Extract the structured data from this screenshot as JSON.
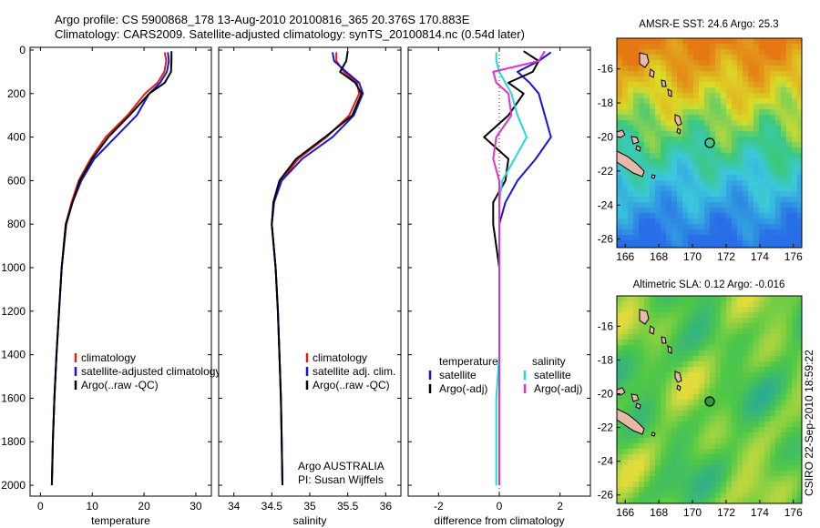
{
  "header": {
    "line1": "Argo profile: CS 5900868_178 13-Aug-2010 20100816_365 20.376S 170.883E",
    "line2": "Climatology: CARS2009. Satellite-adjusted climatology: synTS_20100814.nc (0.54d later)"
  },
  "footer": {
    "institution": "Argo AUSTRALIA",
    "pi": "PI: Susan Wijffels",
    "stamp": "CSIRO 22-Sep-2010 18:59:22"
  },
  "colors": {
    "climatology": "#e02010",
    "satellite": "#1414e6",
    "argo": "#000000",
    "satellite_diff": "#22d8e0",
    "salinity_diff": "#e030d0"
  },
  "chart_data": [
    {
      "type": "line",
      "xlabel": "temperature",
      "ylabel": "",
      "xlim": [
        -2,
        33
      ],
      "ylim": [
        2050,
        0
      ],
      "xticks": [
        0,
        10,
        20,
        30
      ],
      "yticks": [
        0,
        200,
        400,
        600,
        800,
        1000,
        1200,
        1400,
        1600,
        1800,
        2000
      ],
      "legend": [
        "climatology",
        "satellite-adjusted climatology",
        "Argo(..raw -QC)"
      ],
      "legend_position": "lower-left",
      "series": [
        {
          "name": "climatology",
          "color": "#e02010",
          "x": [
            24.0,
            24.3,
            23.9,
            22.6,
            20.2,
            16.8,
            12.6,
            9.7,
            7.4,
            6.0,
            4.9,
            4.1,
            3.6,
            3.1,
            2.7,
            2.4,
            2.2
          ],
          "y": [
            10,
            50,
            100,
            150,
            200,
            300,
            400,
            500,
            600,
            700,
            800,
            1000,
            1200,
            1400,
            1600,
            1800,
            2000
          ]
        },
        {
          "name": "satellite-adjusted climatology",
          "color": "#1414e6",
          "x": [
            24.6,
            24.8,
            24.4,
            23.1,
            21.0,
            18.6,
            14.5,
            10.4,
            7.9,
            6.2,
            5.0,
            4.1,
            3.6,
            3.1,
            2.7,
            2.4,
            2.2
          ],
          "y": [
            10,
            50,
            100,
            150,
            200,
            300,
            400,
            500,
            600,
            700,
            800,
            1000,
            1200,
            1400,
            1600,
            1800,
            2000
          ]
        },
        {
          "name": "Argo(..raw -QC)",
          "color": "#000000",
          "x": [
            25.3,
            25.3,
            25.2,
            24.0,
            21.0,
            17.2,
            13.1,
            10.0,
            7.6,
            6.2,
            4.9,
            4.1,
            3.6,
            3.1,
            2.7,
            2.4,
            2.2
          ],
          "y": [
            5,
            50,
            100,
            150,
            200,
            300,
            400,
            500,
            600,
            700,
            800,
            1000,
            1200,
            1400,
            1600,
            1800,
            2000
          ]
        }
      ]
    },
    {
      "type": "line",
      "xlabel": "salinity",
      "xlim": [
        33.8,
        36.2
      ],
      "ylim": [
        2050,
        0
      ],
      "xticks": [
        34,
        34.5,
        35,
        35.5,
        36
      ],
      "yticks": [
        0,
        200,
        400,
        600,
        800,
        1000,
        1200,
        1400,
        1600,
        1800,
        2000
      ],
      "legend": [
        "climatology",
        "satellite adj. clim.",
        "Argo(..raw -QC)"
      ],
      "legend_position": "lower-left",
      "series": [
        {
          "name": "climatology",
          "color": "#e02010",
          "x": [
            35.35,
            35.35,
            35.45,
            35.62,
            35.65,
            35.52,
            35.22,
            34.85,
            34.62,
            34.53,
            34.5,
            34.55,
            34.58,
            34.6,
            34.62,
            34.63,
            34.64
          ],
          "y": [
            10,
            50,
            100,
            150,
            200,
            300,
            400,
            500,
            600,
            700,
            800,
            1000,
            1200,
            1400,
            1600,
            1800,
            2000
          ]
        },
        {
          "name": "satellite adj. clim.",
          "color": "#1414e6",
          "x": [
            35.3,
            35.32,
            35.48,
            35.65,
            35.7,
            35.58,
            35.3,
            34.9,
            34.63,
            34.53,
            34.5,
            34.55,
            34.58,
            34.6,
            34.62,
            34.63,
            34.64
          ],
          "y": [
            10,
            50,
            100,
            150,
            200,
            300,
            400,
            500,
            600,
            700,
            800,
            1000,
            1200,
            1400,
            1600,
            1800,
            2000
          ]
        },
        {
          "name": "Argo(..raw -QC)",
          "color": "#000000",
          "x": [
            35.5,
            35.48,
            35.4,
            35.6,
            35.68,
            35.56,
            35.2,
            34.82,
            34.6,
            34.52,
            34.5,
            34.55,
            34.58,
            34.6,
            34.62,
            34.63,
            34.64
          ],
          "y": [
            5,
            50,
            100,
            150,
            200,
            300,
            400,
            500,
            600,
            700,
            800,
            1000,
            1200,
            1400,
            1600,
            1800,
            2000
          ]
        }
      ]
    },
    {
      "type": "line",
      "xlabel": "difference from climatology",
      "xlim": [
        -3,
        3
      ],
      "ylim": [
        2050,
        0
      ],
      "xticks": [
        -2,
        0,
        2
      ],
      "yticks": [
        0,
        200,
        400,
        600,
        800,
        1000,
        1200,
        1400,
        1600,
        1800,
        2000
      ],
      "legend_groups": [
        {
          "title": "temperature",
          "entries": [
            "satellite",
            "Argo(-adj)"
          ]
        },
        {
          "title": "salinity",
          "entries": [
            "satellite",
            "Argo(-adj)"
          ]
        }
      ],
      "series": [
        {
          "name": "temperature satellite",
          "color": "#1414e6",
          "x": [
            1.7,
            1.3,
            0.6,
            1.0,
            1.3,
            1.5,
            1.7,
            1.2,
            0.6,
            0.2,
            0.0,
            0.0,
            0.0,
            0.0,
            0.0,
            0.0,
            0.0
          ],
          "y": [
            10,
            50,
            100,
            150,
            200,
            300,
            400,
            500,
            600,
            700,
            800,
            1000,
            1200,
            1400,
            1600,
            1800,
            2000
          ]
        },
        {
          "name": "temperature Argo(-adj)",
          "color": "#000000",
          "x": [
            0.8,
            1.3,
            1.1,
            0.3,
            0.8,
            0.3,
            -0.5,
            0.3,
            0.2,
            -0.2,
            -0.2,
            0.0,
            0.0,
            0.0,
            0.0,
            0.0,
            0.0
          ],
          "y": [
            5,
            50,
            100,
            150,
            200,
            300,
            400,
            500,
            600,
            700,
            800,
            1000,
            1200,
            1400,
            1600,
            1800,
            2000
          ]
        },
        {
          "name": "salinity satellite",
          "color": "#22d8e0",
          "x": [
            -0.1,
            -0.1,
            0.0,
            0.2,
            0.4,
            0.6,
            0.9,
            0.5,
            0.1,
            0.0,
            0.0,
            0.0,
            0.0,
            0.0,
            -0.1,
            -0.1,
            -0.1
          ],
          "y": [
            10,
            50,
            100,
            150,
            200,
            300,
            400,
            500,
            600,
            700,
            800,
            1000,
            1200,
            1400,
            1600,
            1800,
            2000
          ]
        },
        {
          "name": "salinity Argo(-adj)",
          "color": "#e030d0",
          "x": [
            1.5,
            1.3,
            -0.2,
            -0.1,
            0.3,
            0.4,
            -0.1,
            -0.2,
            0.0,
            0.0,
            0.0,
            0.0,
            0.0,
            0.0,
            0.0,
            0.0,
            0.0
          ],
          "y": [
            5,
            50,
            100,
            150,
            200,
            300,
            400,
            500,
            600,
            700,
            800,
            1000,
            1200,
            1400,
            1600,
            1800,
            2000
          ]
        }
      ]
    },
    {
      "type": "heatmap",
      "title": "AMSR-E SST: 24.6 Argo: 25.3",
      "xlim": [
        165.5,
        176.5
      ],
      "ylim": [
        -26.5,
        -14.2
      ],
      "xticks": [
        166,
        168,
        170,
        172,
        174,
        176
      ],
      "yticks": [
        -16,
        -18,
        -20,
        -22,
        -24,
        -26
      ],
      "argo_position": {
        "lon": 170.883,
        "lat": -20.376
      }
    },
    {
      "type": "heatmap",
      "title": "Altimetric SLA: 0.12 Argo: -0.016",
      "xlim": [
        165.5,
        176.5
      ],
      "ylim": [
        -26.5,
        -14.2
      ],
      "xticks": [
        166,
        168,
        170,
        172,
        174,
        176
      ],
      "yticks": [
        -16,
        -18,
        -20,
        -22,
        -24,
        -26
      ],
      "argo_position": {
        "lon": 170.883,
        "lat": -20.376
      }
    }
  ]
}
